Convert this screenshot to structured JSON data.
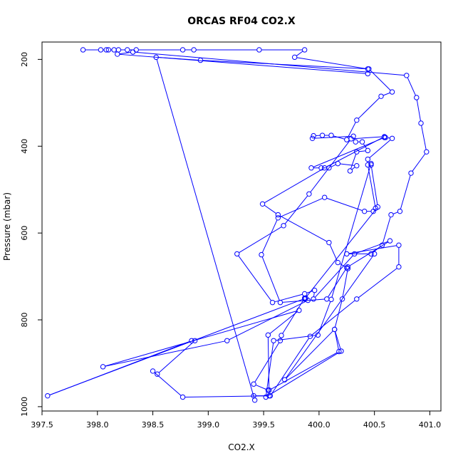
{
  "chart_data": {
    "type": "scatter",
    "title": "ORCAS RF04 CO2.X",
    "xlabel": "CO2.X",
    "ylabel": "Pressure (mbar)",
    "xlim": [
      397.5,
      401.1
    ],
    "ylim": [
      1010,
      160
    ],
    "y_reversed": true,
    "grid": false,
    "legend": "none",
    "markers": "open-circle",
    "connected_line": true,
    "color": "#0000ff",
    "x_ticks": [
      "397.5",
      "398.0",
      "398.5",
      "399.0",
      "399.5",
      "400.0",
      "400.5",
      "401.0"
    ],
    "x_tick_values": [
      397.5,
      398.0,
      398.5,
      399.0,
      399.5,
      400.0,
      400.5,
      401.0
    ],
    "y_ticks": [
      "200",
      "400",
      "600",
      "800",
      "1000"
    ],
    "y_tick_values": [
      200,
      400,
      600,
      800,
      1000
    ],
    "points": [
      {
        "x": 397.87,
        "y": 178
      },
      {
        "x": 398.03,
        "y": 178
      },
      {
        "x": 398.08,
        "y": 178
      },
      {
        "x": 398.1,
        "y": 178
      },
      {
        "x": 398.15,
        "y": 178
      },
      {
        "x": 398.19,
        "y": 178
      },
      {
        "x": 398.27,
        "y": 178
      },
      {
        "x": 398.35,
        "y": 178
      },
      {
        "x": 398.77,
        "y": 178
      },
      {
        "x": 398.87,
        "y": 178
      },
      {
        "x": 399.46,
        "y": 178
      },
      {
        "x": 399.87,
        "y": 178
      },
      {
        "x": 399.78,
        "y": 195
      },
      {
        "x": 400.44,
        "y": 222
      },
      {
        "x": 400.44,
        "y": 233
      },
      {
        "x": 398.18,
        "y": 188
      },
      {
        "x": 398.32,
        "y": 183
      },
      {
        "x": 400.79,
        "y": 237
      },
      {
        "x": 400.88,
        "y": 288
      },
      {
        "x": 400.92,
        "y": 347
      },
      {
        "x": 400.97,
        "y": 413
      },
      {
        "x": 400.83,
        "y": 462
      },
      {
        "x": 400.73,
        "y": 550
      },
      {
        "x": 400.65,
        "y": 558
      },
      {
        "x": 400.57,
        "y": 628
      },
      {
        "x": 400.47,
        "y": 648
      },
      {
        "x": 400.25,
        "y": 648
      },
      {
        "x": 400.72,
        "y": 628
      },
      {
        "x": 400.72,
        "y": 678
      },
      {
        "x": 400.34,
        "y": 752
      },
      {
        "x": 399.92,
        "y": 838
      },
      {
        "x": 399.56,
        "y": 975
      },
      {
        "x": 399.41,
        "y": 975
      },
      {
        "x": 399.42,
        "y": 985
      },
      {
        "x": 398.53,
        "y": 195
      },
      {
        "x": 398.93,
        "y": 202
      },
      {
        "x": 400.45,
        "y": 222
      },
      {
        "x": 400.66,
        "y": 275
      },
      {
        "x": 400.56,
        "y": 285
      },
      {
        "x": 400.34,
        "y": 340
      },
      {
        "x": 400.25,
        "y": 385
      },
      {
        "x": 400.11,
        "y": 375
      },
      {
        "x": 400.03,
        "y": 375
      },
      {
        "x": 399.95,
        "y": 376
      },
      {
        "x": 399.94,
        "y": 382
      },
      {
        "x": 400.31,
        "y": 377
      },
      {
        "x": 400.33,
        "y": 390
      },
      {
        "x": 400.39,
        "y": 390
      },
      {
        "x": 400.44,
        "y": 410
      },
      {
        "x": 400.34,
        "y": 413
      },
      {
        "x": 400.28,
        "y": 457
      },
      {
        "x": 400.34,
        "y": 445
      },
      {
        "x": 400.17,
        "y": 440
      },
      {
        "x": 400.09,
        "y": 450
      },
      {
        "x": 400.02,
        "y": 450
      },
      {
        "x": 399.93,
        "y": 450
      },
      {
        "x": 400.59,
        "y": 380
      },
      {
        "x": 400.6,
        "y": 380
      },
      {
        "x": 400.66,
        "y": 382
      },
      {
        "x": 400.44,
        "y": 430
      },
      {
        "x": 400.44,
        "y": 443
      },
      {
        "x": 400.51,
        "y": 543
      },
      {
        "x": 400.49,
        "y": 550
      },
      {
        "x": 400.41,
        "y": 550
      },
      {
        "x": 400.05,
        "y": 518
      },
      {
        "x": 399.63,
        "y": 565
      },
      {
        "x": 399.48,
        "y": 650
      },
      {
        "x": 399.65,
        "y": 760
      },
      {
        "x": 400.07,
        "y": 752
      },
      {
        "x": 400.25,
        "y": 680
      },
      {
        "x": 400.17,
        "y": 668
      },
      {
        "x": 400.09,
        "y": 622
      },
      {
        "x": 399.63,
        "y": 558
      },
      {
        "x": 399.49,
        "y": 533
      },
      {
        "x": 400.05,
        "y": 450
      },
      {
        "x": 400.59,
        "y": 378
      },
      {
        "x": 400.29,
        "y": 383
      },
      {
        "x": 399.91,
        "y": 510
      },
      {
        "x": 399.68,
        "y": 583
      },
      {
        "x": 399.26,
        "y": 648
      },
      {
        "x": 399.58,
        "y": 760
      },
      {
        "x": 399.87,
        "y": 740
      },
      {
        "x": 399.96,
        "y": 732
      },
      {
        "x": 399.95,
        "y": 752
      },
      {
        "x": 400.32,
        "y": 648
      },
      {
        "x": 400.64,
        "y": 618
      },
      {
        "x": 400.26,
        "y": 678
      },
      {
        "x": 400.26,
        "y": 682
      },
      {
        "x": 400.21,
        "y": 752
      },
      {
        "x": 400.14,
        "y": 822
      },
      {
        "x": 400.18,
        "y": 873
      },
      {
        "x": 399.55,
        "y": 962
      },
      {
        "x": 399.54,
        "y": 962
      },
      {
        "x": 399.41,
        "y": 948
      },
      {
        "x": 399.65,
        "y": 848
      },
      {
        "x": 399.66,
        "y": 836
      },
      {
        "x": 399.87,
        "y": 750
      },
      {
        "x": 399.9,
        "y": 755
      },
      {
        "x": 399.17,
        "y": 848
      },
      {
        "x": 398.05,
        "y": 908
      },
      {
        "x": 399.82,
        "y": 778
      },
      {
        "x": 399.54,
        "y": 835
      },
      {
        "x": 399.55,
        "y": 975
      },
      {
        "x": 398.77,
        "y": 978
      },
      {
        "x": 398.5,
        "y": 918
      },
      {
        "x": 398.54,
        "y": 925
      },
      {
        "x": 398.88,
        "y": 848
      },
      {
        "x": 398.85,
        "y": 848
      },
      {
        "x": 397.55,
        "y": 975
      },
      {
        "x": 399.88,
        "y": 750
      },
      {
        "x": 399.87,
        "y": 752
      },
      {
        "x": 400.53,
        "y": 540
      },
      {
        "x": 400.47,
        "y": 443
      },
      {
        "x": 400.47,
        "y": 440
      },
      {
        "x": 400.11,
        "y": 753
      },
      {
        "x": 399.99,
        "y": 835
      },
      {
        "x": 399.59,
        "y": 848
      },
      {
        "x": 399.52,
        "y": 978
      },
      {
        "x": 400.2,
        "y": 872
      },
      {
        "x": 400.14,
        "y": 822
      },
      {
        "x": 399.69,
        "y": 938
      },
      {
        "x": 400.5,
        "y": 648
      }
    ]
  }
}
